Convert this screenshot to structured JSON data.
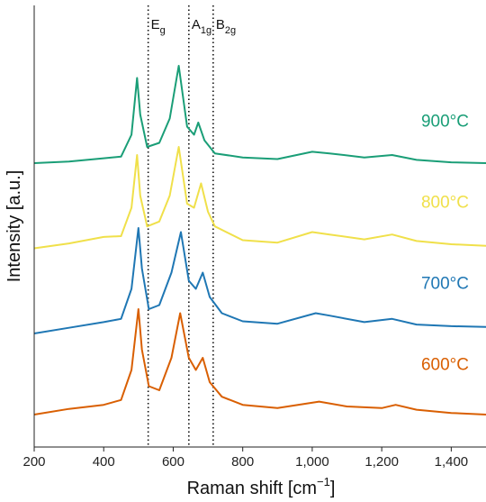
{
  "chart_data": {
    "type": "line",
    "xlabel": "Raman shift [cm",
    "xlabel_sup": "−1",
    "xlabel_close": "]",
    "ylabel": "Intensity [a.u.]",
    "xlim": [
      200,
      1500
    ],
    "x_ticks": [
      200,
      400,
      600,
      800,
      1000,
      1200,
      1400
    ],
    "x_tick_labels": [
      "200",
      "400",
      "600",
      "800",
      "1,000",
      "1,200",
      "1,400"
    ],
    "y_ticks_shown": false,
    "reference_lines": [
      {
        "x": 528,
        "base": "E",
        "sub": "g"
      },
      {
        "x": 645,
        "base": "A",
        "sub": "1g"
      },
      {
        "x": 715,
        "base": "B",
        "sub": "2g"
      }
    ],
    "series": [
      {
        "name": "900°C",
        "color": "#1a9e77",
        "offset": 3.0,
        "points": [
          [
            200,
            0.1
          ],
          [
            300,
            0.12
          ],
          [
            400,
            0.16
          ],
          [
            450,
            0.18
          ],
          [
            480,
            0.45
          ],
          [
            496,
            1.15
          ],
          [
            505,
            0.7
          ],
          [
            525,
            0.3
          ],
          [
            560,
            0.35
          ],
          [
            590,
            0.65
          ],
          [
            616,
            1.3
          ],
          [
            640,
            0.55
          ],
          [
            660,
            0.45
          ],
          [
            672,
            0.6
          ],
          [
            690,
            0.38
          ],
          [
            720,
            0.22
          ],
          [
            800,
            0.17
          ],
          [
            900,
            0.15
          ],
          [
            1000,
            0.24
          ],
          [
            1050,
            0.22
          ],
          [
            1150,
            0.17
          ],
          [
            1230,
            0.2
          ],
          [
            1300,
            0.14
          ],
          [
            1400,
            0.11
          ],
          [
            1500,
            0.1
          ]
        ]
      },
      {
        "name": "800°C",
        "color": "#f0e04a",
        "offset": 2.0,
        "points": [
          [
            200,
            0.05
          ],
          [
            300,
            0.11
          ],
          [
            400,
            0.19
          ],
          [
            450,
            0.2
          ],
          [
            480,
            0.55
          ],
          [
            496,
            1.2
          ],
          [
            505,
            0.7
          ],
          [
            525,
            0.32
          ],
          [
            560,
            0.38
          ],
          [
            590,
            0.7
          ],
          [
            616,
            1.3
          ],
          [
            640,
            0.6
          ],
          [
            660,
            0.55
          ],
          [
            680,
            0.85
          ],
          [
            700,
            0.5
          ],
          [
            720,
            0.32
          ],
          [
            800,
            0.15
          ],
          [
            900,
            0.12
          ],
          [
            1000,
            0.25
          ],
          [
            1050,
            0.22
          ],
          [
            1150,
            0.16
          ],
          [
            1230,
            0.22
          ],
          [
            1300,
            0.14
          ],
          [
            1400,
            0.1
          ],
          [
            1500,
            0.08
          ]
        ]
      },
      {
        "name": "700°C",
        "color": "#1f77b4",
        "offset": 1.0,
        "points": [
          [
            200,
            0.0
          ],
          [
            300,
            0.07
          ],
          [
            400,
            0.14
          ],
          [
            450,
            0.18
          ],
          [
            480,
            0.55
          ],
          [
            500,
            1.3
          ],
          [
            510,
            0.8
          ],
          [
            530,
            0.3
          ],
          [
            560,
            0.35
          ],
          [
            595,
            0.75
          ],
          [
            622,
            1.25
          ],
          [
            645,
            0.65
          ],
          [
            665,
            0.55
          ],
          [
            685,
            0.75
          ],
          [
            705,
            0.45
          ],
          [
            740,
            0.25
          ],
          [
            800,
            0.15
          ],
          [
            900,
            0.12
          ],
          [
            1010,
            0.25
          ],
          [
            1050,
            0.22
          ],
          [
            1150,
            0.14
          ],
          [
            1230,
            0.18
          ],
          [
            1300,
            0.11
          ],
          [
            1400,
            0.09
          ],
          [
            1500,
            0.08
          ]
        ]
      },
      {
        "name": "600°C",
        "color": "#d95f02",
        "offset": 0.0,
        "points": [
          [
            200,
            0.0
          ],
          [
            300,
            0.07
          ],
          [
            400,
            0.12
          ],
          [
            450,
            0.18
          ],
          [
            480,
            0.55
          ],
          [
            500,
            1.3
          ],
          [
            510,
            0.8
          ],
          [
            530,
            0.35
          ],
          [
            560,
            0.3
          ],
          [
            595,
            0.7
          ],
          [
            620,
            1.25
          ],
          [
            645,
            0.7
          ],
          [
            665,
            0.55
          ],
          [
            685,
            0.7
          ],
          [
            705,
            0.4
          ],
          [
            740,
            0.22
          ],
          [
            800,
            0.12
          ],
          [
            900,
            0.08
          ],
          [
            1020,
            0.16
          ],
          [
            1100,
            0.1
          ],
          [
            1200,
            0.08
          ],
          [
            1240,
            0.12
          ],
          [
            1300,
            0.06
          ],
          [
            1400,
            0.02
          ],
          [
            1500,
            0.0
          ]
        ]
      }
    ]
  }
}
